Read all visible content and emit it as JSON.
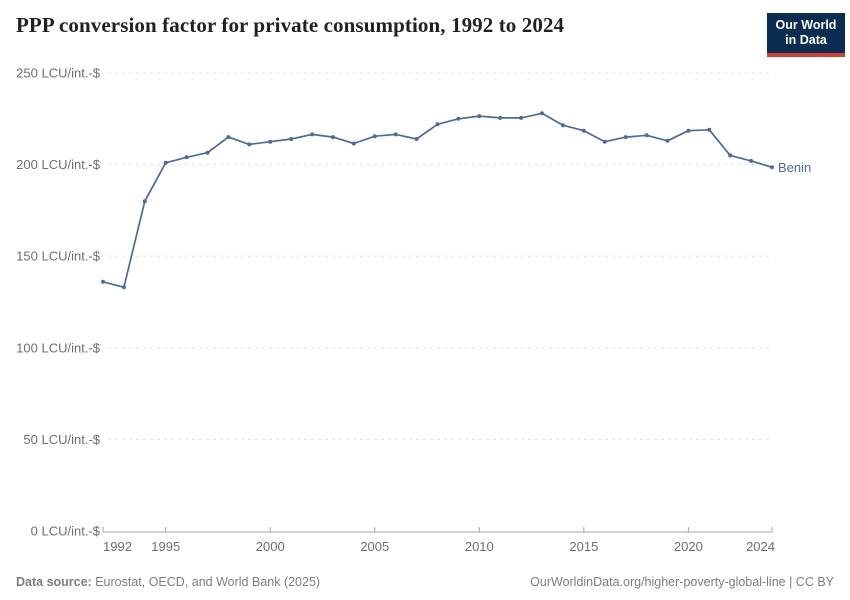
{
  "header": {
    "title": "PPP conversion factor for private consumption, 1992 to 2024",
    "logo": {
      "line1": "Our World",
      "line2": "in Data"
    }
  },
  "chart_data": {
    "type": "line",
    "title": "PPP conversion factor for private consumption, 1992 to 2024",
    "unit": "LCU/int.-$",
    "x": [
      1992,
      1993,
      1994,
      1995,
      1996,
      1997,
      1998,
      1999,
      2000,
      2001,
      2002,
      2003,
      2004,
      2005,
      2006,
      2007,
      2008,
      2009,
      2010,
      2011,
      2012,
      2013,
      2014,
      2015,
      2016,
      2017,
      2018,
      2019,
      2020,
      2021,
      2022,
      2023,
      2024
    ],
    "series": [
      {
        "name": "Benin",
        "color": "#4c6a9c",
        "values": [
          136,
          133,
          180,
          201,
          204,
          206.5,
          215,
          211,
          212.5,
          214,
          216.5,
          215,
          211.5,
          215.5,
          216.5,
          214,
          222,
          225,
          226.5,
          225.5,
          225.5,
          228,
          221.5,
          218.5,
          212.5,
          215,
          216,
          213,
          218.5,
          219,
          205,
          202,
          198.5
        ]
      }
    ],
    "xlim": [
      1992,
      2024
    ],
    "ylim": [
      0,
      250
    ],
    "yticks": [
      0,
      50,
      100,
      150,
      200,
      250
    ],
    "ytick_suffix": " LCU/int.-$",
    "xticks": [
      1992,
      1995,
      2000,
      2005,
      2010,
      2015,
      2020,
      2024
    ],
    "grid": "horizontal-dashed",
    "legend": "line-end-label"
  },
  "footer": {
    "source_label": "Data source:",
    "source_text": " Eurostat, OECD, and World Bank (2025)",
    "credit": "OurWorldinData.org/higher-poverty-global-line | CC BY"
  },
  "colors": {
    "line": "#4c6a9c",
    "grid": "#e0e0e0",
    "axis": "#a5a5a5",
    "tick_label": "#6e6e6e",
    "title_text": "#222222",
    "footer_text": "#7d7d7d",
    "logo_bg": "#0c2d52",
    "logo_accent": "#d93d32"
  }
}
